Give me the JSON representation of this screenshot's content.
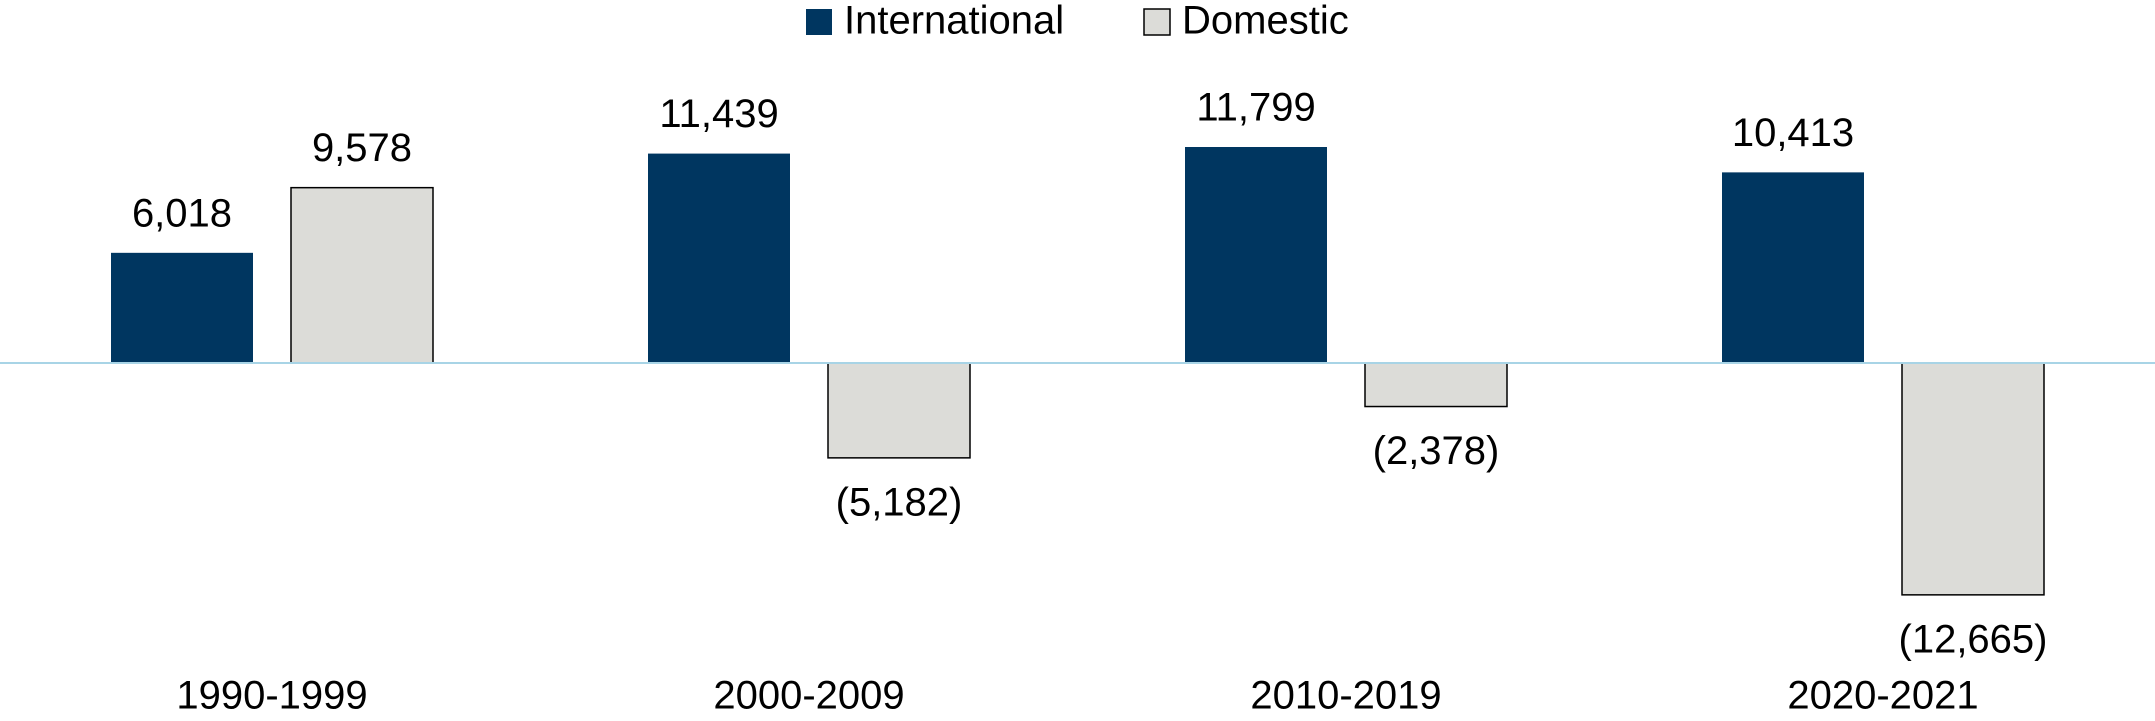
{
  "chart_data": {
    "type": "bar",
    "categories": [
      "1990-1999",
      "2000-2009",
      "2010-2019",
      "2020-2021"
    ],
    "series": [
      {
        "name": "International",
        "color": "#003660",
        "values": [
          6018,
          11439,
          11799,
          10413
        ],
        "value_labels": [
          "6,018",
          "11,439",
          "11,799",
          "10,413"
        ]
      },
      {
        "name": "Domestic",
        "color": "#dcdcd8",
        "values": [
          9578,
          -5182,
          -2378,
          -12665
        ],
        "value_labels": [
          "9,578",
          "(5,182)",
          "(2,378)",
          "(12,665)"
        ]
      }
    ],
    "legend": "top"
  }
}
